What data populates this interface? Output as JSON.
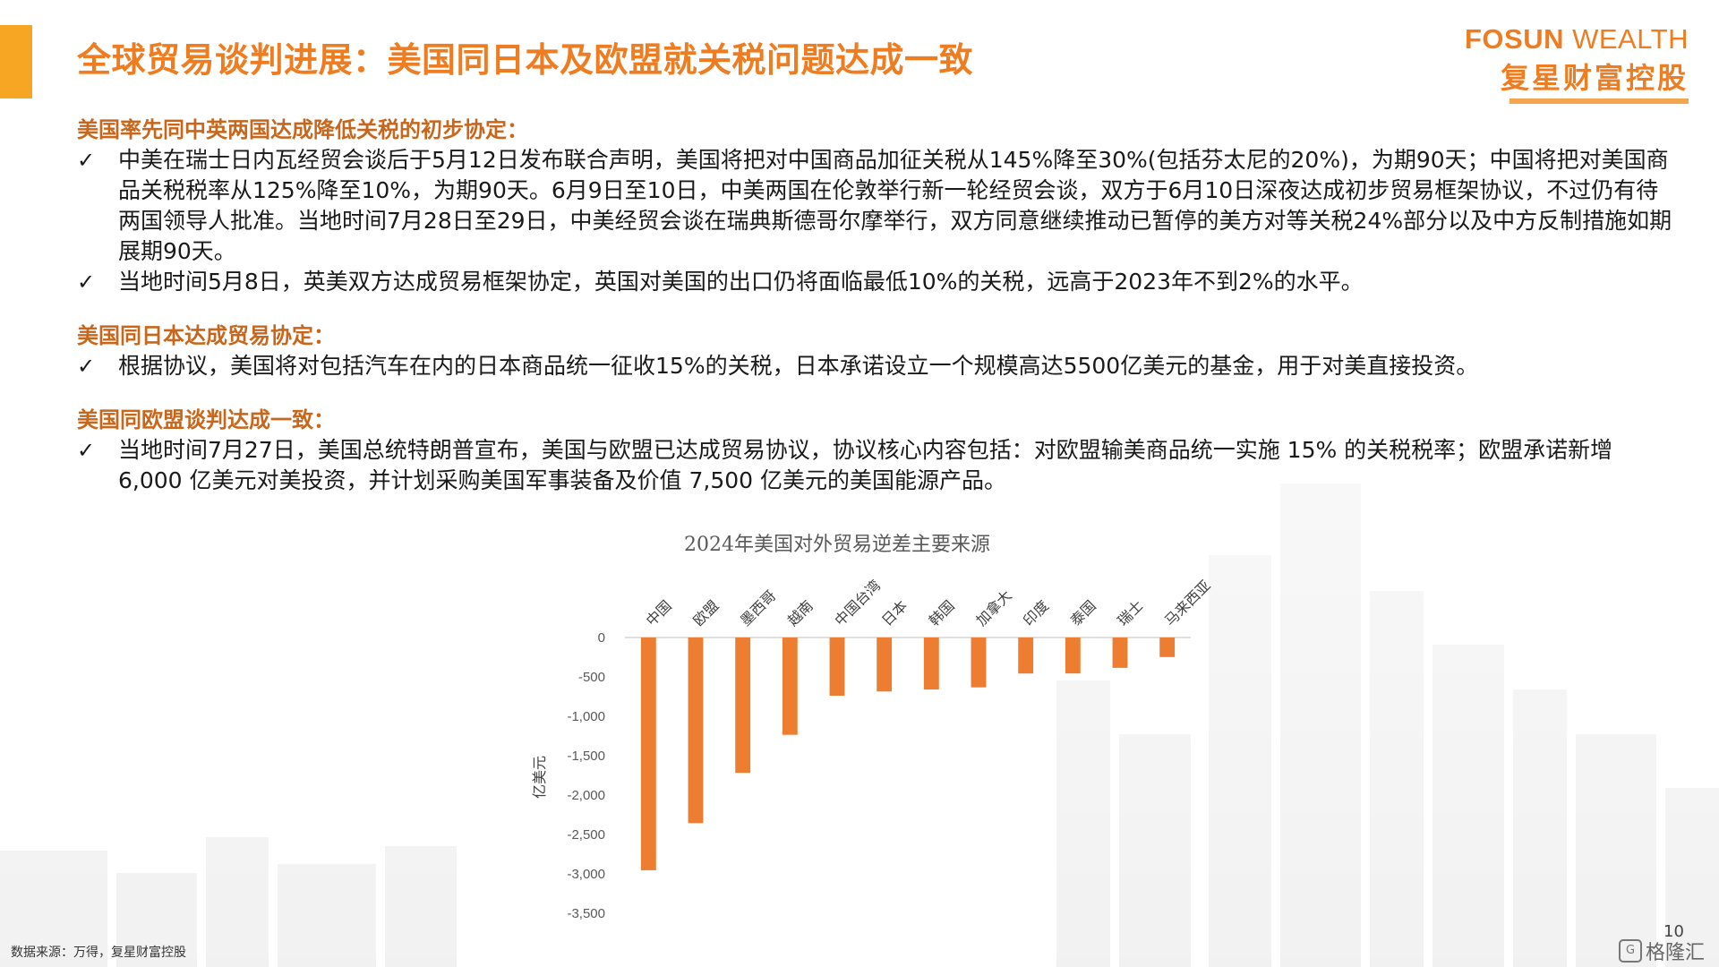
{
  "header": {
    "title": "全球贸易谈判进展：美国同日本及欧盟就关税问题达成一致",
    "brand_en_bold": "FOSUN",
    "brand_en_thin": "WEALTH",
    "brand_cn": "复星财富控股",
    "accent_color": "#f6a623",
    "title_color": "#ee7d22"
  },
  "sections": [
    {
      "title": "美国率先同中英两国达成降低关税的初步协定：",
      "bullets": [
        "中美在瑞士日内瓦经贸会谈后于5月12日发布联合声明，美国将把对中国商品加征关税从145%降至30%(包括芬太尼的20%)，为期90天；中国将把对美国商品关税税率从125%降至10%，为期90天。6月9日至10日，中美两国在伦敦举行新一轮经贸会谈，双方于6月10日深夜达成初步贸易框架协议，不过仍有待两国领导人批准。当地时间7月28日至29日，中美经贸会谈在瑞典斯德哥尔摩举行，双方同意继续推动已暂停的美方对等关税24%部分以及中方反制措施如期展期90天。",
        "当地时间5月8日，英美双方达成贸易框架协定，英国对美国的出口仍将面临最低10%的关税，远高于2023年不到2%的水平。"
      ]
    },
    {
      "title": "美国同日本达成贸易协定：",
      "bullets": [
        "根据协议，美国将对包括汽车在内的日本商品统一征收15%的关税，日本承诺设立一个规模高达5500亿美元的基金，用于对美直接投资。"
      ]
    },
    {
      "title": "美国同欧盟谈判达成一致：",
      "bullets": [
        "当地时间7月27日，美国总统特朗普宣布，美国与欧盟已达成贸易协议，协议核心内容包括：对欧盟输美商品统一实施 15% 的关税税率；欧盟承诺新增 6,000 亿美元对美投资，并计划采购美国军事装备及价值 7,500 亿美元的美国能源产品。"
      ]
    }
  ],
  "bullet_mark": "✓",
  "chart_data": {
    "type": "bar",
    "title": "2024年美国对外贸易逆差主要来源",
    "ylabel": "亿美元",
    "categories": [
      "中国",
      "欧盟",
      "墨西哥",
      "越南",
      "中国台湾",
      "日本",
      "韩国",
      "加拿大",
      "印度",
      "泰国",
      "瑞士",
      "马来西亚"
    ],
    "values": [
      -2954,
      -2356,
      -1718,
      -1235,
      -739,
      -685,
      -660,
      -633,
      -457,
      -456,
      -385,
      -248
    ],
    "ylim": [
      -3500,
      0
    ],
    "yticks": [
      0,
      -500,
      -1000,
      -1500,
      -2000,
      -2500,
      -3000,
      -3500
    ],
    "ytick_labels": [
      "0",
      "-500",
      "-1,000",
      "-1,500",
      "-2,000",
      "-2,500",
      "-3,000",
      "-3,500"
    ],
    "bar_color": "#ed7d31",
    "grid": false
  },
  "footer": {
    "source": "数据来源：万得，复星财富控股",
    "page": "10",
    "watermark": "格隆汇"
  }
}
